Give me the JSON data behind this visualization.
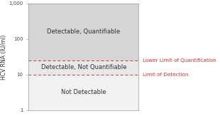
{
  "title": "",
  "ylabel": "HCV RNA (IU/ml)",
  "ylim_min": 1,
  "ylim_max": 1000,
  "xlim_min": 0,
  "xlim_max": 1,
  "lloq": 25,
  "lod": 10,
  "region_top_color": "#d5d5d5",
  "region_mid_color": "#e8e8e8",
  "region_bot_color": "#f2f2f2",
  "line_color": "#cc3333",
  "label_top": "Detectable, Quantifiable",
  "label_mid": "Detectable, Not Quantifiable",
  "label_bot": "Not Detectable",
  "annot_lloq": "Lower Limit of Quantification",
  "annot_lod": "Limit of Detection",
  "label_fontsize": 6.0,
  "annot_fontsize": 5.2,
  "ylabel_fontsize": 5.5,
  "tick_fontsize": 5.0,
  "background_color": "#ffffff"
}
